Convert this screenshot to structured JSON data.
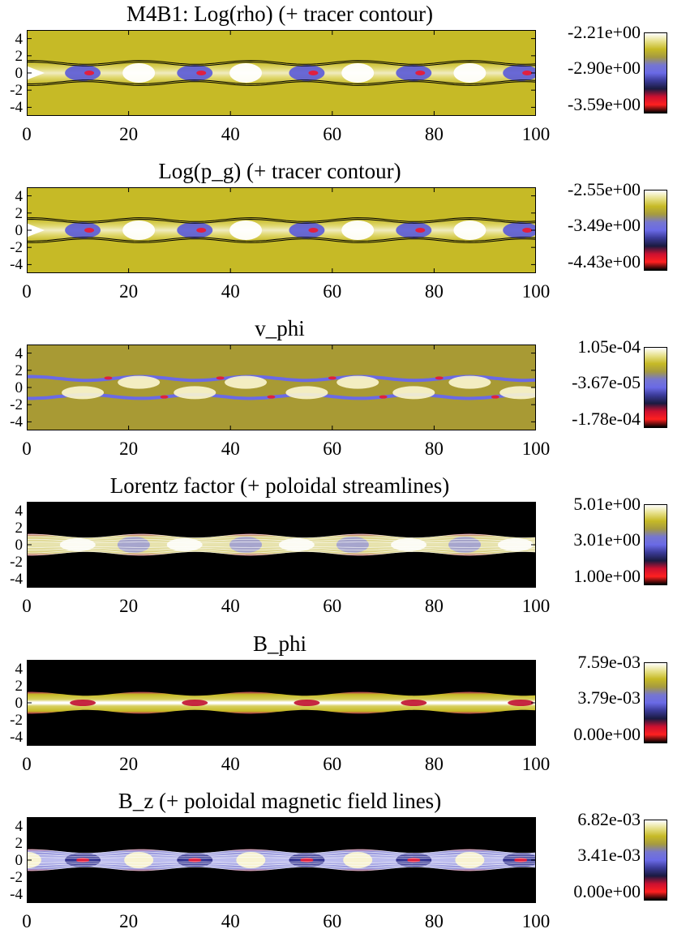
{
  "chart_data": [
    {
      "type": "heatmap",
      "title": "M4B1: Log(rho) (+ tracer contour)",
      "xlim": [
        0,
        100
      ],
      "ylim": [
        -5,
        5
      ],
      "xticks": [
        "0",
        "20",
        "40",
        "60",
        "80",
        "100"
      ],
      "yticks": [
        "4",
        "2",
        "0",
        "-2",
        "-4"
      ],
      "colorbar_labels": [
        "-2.21e+00",
        "-2.90e+00",
        "-3.59e+00"
      ],
      "background": "#c6ba26",
      "mode": "jet",
      "jet_shape": "rho",
      "contours": "tracer"
    },
    {
      "type": "heatmap",
      "title": "Log(p_g) (+ tracer contour)",
      "xlim": [
        0,
        100
      ],
      "ylim": [
        -5,
        5
      ],
      "xticks": [
        "0",
        "20",
        "40",
        "60",
        "80",
        "100"
      ],
      "yticks": [
        "4",
        "2",
        "0",
        "-2",
        "-4"
      ],
      "colorbar_labels": [
        "-2.55e+00",
        "-3.49e+00",
        "-4.43e+00"
      ],
      "background": "#c6ba26",
      "mode": "jet",
      "jet_shape": "rho",
      "contours": "tracer"
    },
    {
      "type": "heatmap",
      "title": "v_phi",
      "xlim": [
        0,
        100
      ],
      "ylim": [
        -5,
        5
      ],
      "xticks": [
        "0",
        "20",
        "40",
        "60",
        "80",
        "100"
      ],
      "yticks": [
        "4",
        "2",
        "0",
        "-2",
        "-4"
      ],
      "colorbar_labels": [
        "1.05e-04",
        "-3.67e-05",
        "-1.78e-04"
      ],
      "background": "#a89a34",
      "mode": "vphi",
      "jet_shape": "vphi",
      "contours": "none"
    },
    {
      "type": "heatmap",
      "title": "Lorentz factor (+ poloidal streamlines)",
      "xlim": [
        0,
        100
      ],
      "ylim": [
        -5,
        5
      ],
      "xticks": [
        "0",
        "20",
        "40",
        "60",
        "80",
        "100"
      ],
      "yticks": [
        "4",
        "2",
        "0",
        "-2",
        "-4"
      ],
      "colorbar_labels": [
        "5.01e+00",
        "3.01e+00",
        "1.00e+00"
      ],
      "background": "#000000",
      "mode": "jet",
      "jet_shape": "lorentz",
      "contours": "streamlines"
    },
    {
      "type": "heatmap",
      "title": "B_phi",
      "xlim": [
        0,
        100
      ],
      "ylim": [
        -5,
        5
      ],
      "xticks": [
        "0",
        "20",
        "40",
        "60",
        "80",
        "100"
      ],
      "yticks": [
        "4",
        "2",
        "0",
        "-2",
        "-4"
      ],
      "colorbar_labels": [
        "7.59e-03",
        "3.79e-03",
        "0.00e+00"
      ],
      "background": "#000000",
      "mode": "jet",
      "jet_shape": "bphi",
      "contours": "none"
    },
    {
      "type": "heatmap",
      "title": "B_z (+ poloidal magnetic field lines)",
      "xlim": [
        0,
        100
      ],
      "ylim": [
        -5,
        5
      ],
      "xticks": [
        "0",
        "20",
        "40",
        "60",
        "80",
        "100"
      ],
      "yticks": [
        "4",
        "2",
        "0",
        "-2",
        "-4"
      ],
      "colorbar_labels": [
        "6.82e-03",
        "3.41e-03",
        "0.00e+00"
      ],
      "background": "#000000",
      "mode": "jet",
      "jet_shape": "bz",
      "contours": "fieldlines"
    }
  ],
  "colorbar_colors": [
    "#ffffff",
    "#e6e08a",
    "#c6ba26",
    "#a59a40",
    "#7676d0",
    "#6a6ae6",
    "#3a3a96",
    "#1a1a40",
    "#cc1030",
    "#ff2020",
    "#000000"
  ]
}
